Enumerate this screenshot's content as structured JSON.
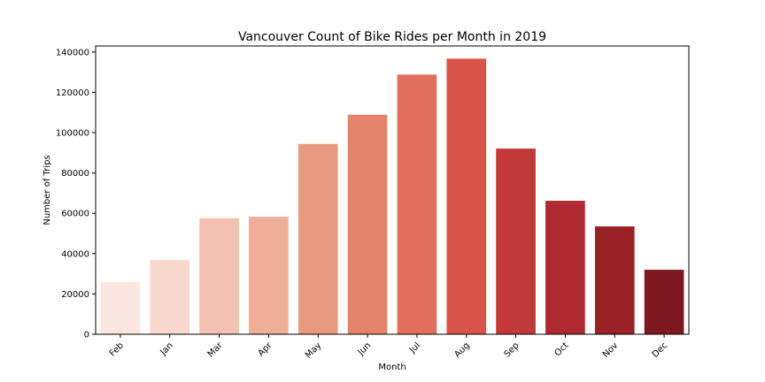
{
  "chart_data": {
    "type": "bar",
    "title": "Vancouver Count of Bike Rides per Month in 2019",
    "xlabel": "Month",
    "ylabel": "Number of Trips",
    "categories": [
      "Feb",
      "Jan",
      "Mar",
      "Apr",
      "May",
      "Jun",
      "Jul",
      "Aug",
      "Sep",
      "Oct",
      "Nov",
      "Dec"
    ],
    "values": [
      25900,
      36800,
      57600,
      58300,
      94400,
      108900,
      128800,
      136700,
      92100,
      66200,
      53500,
      32000
    ],
    "colors": [
      "#fce7e0",
      "#f8d7cc",
      "#f2c1b1",
      "#eeae98",
      "#e89a80",
      "#e6836b",
      "#e07059",
      "#d85448",
      "#c3393a",
      "#ae2a30",
      "#9a2227",
      "#7e1820"
    ],
    "ylim": [
      0,
      143000
    ],
    "yticks": [
      0,
      20000,
      40000,
      60000,
      80000,
      100000,
      120000,
      140000
    ],
    "ytick_labels": [
      "0",
      "20000",
      "40000",
      "60000",
      "80000",
      "100000",
      "120000",
      "140000"
    ],
    "grid": false,
    "legend": "none"
  }
}
